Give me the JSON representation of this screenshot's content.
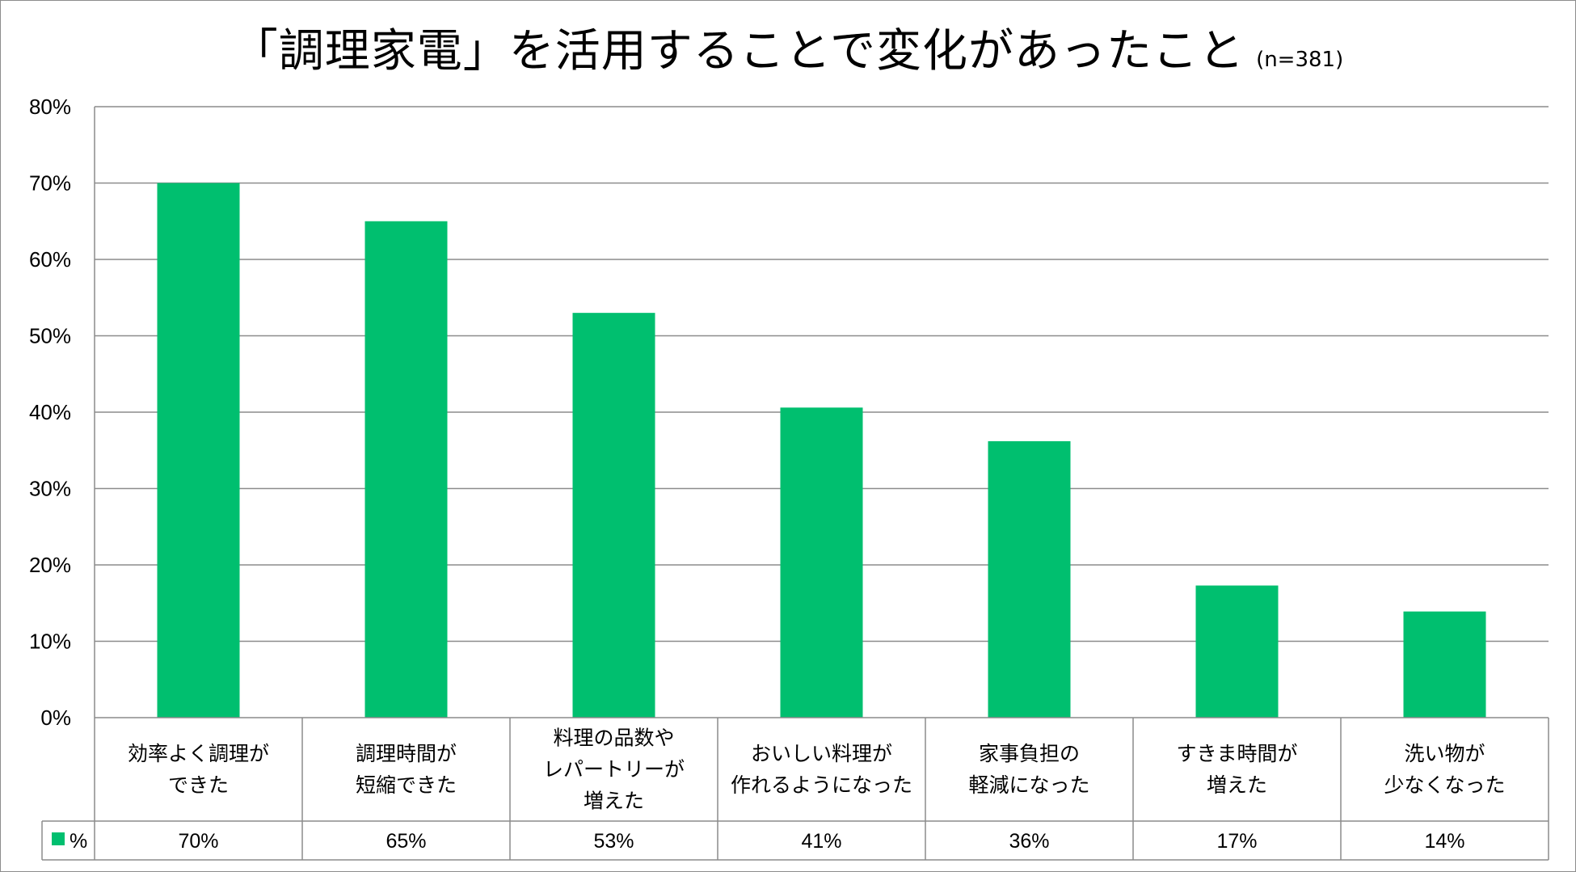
{
  "chart_data": {
    "type": "bar",
    "title": "「調理家電」を活用することで変化があったこと",
    "subtitle": "(n=381)",
    "categories": [
      [
        "効率よく調理が",
        "できた"
      ],
      [
        "調理時間が",
        "短縮できた"
      ],
      [
        "料理の品数や",
        "レパートリーが",
        "増えた"
      ],
      [
        "おいしい料理が",
        "作れるようになった"
      ],
      [
        "家事負担の",
        "軽減になった"
      ],
      [
        "すきま時間が",
        "増えた"
      ],
      [
        "洗い物が",
        "少なくなった"
      ]
    ],
    "series": [
      {
        "name": "%",
        "values": [
          70,
          65,
          53,
          40.6,
          36.2,
          17.3,
          13.9
        ],
        "labels": [
          "70%",
          "65%",
          "53%",
          "41%",
          "36%",
          "17%",
          "14%"
        ],
        "color": "#00bf6f"
      }
    ],
    "yticks": [
      "0%",
      "10%",
      "20%",
      "30%",
      "40%",
      "50%",
      "60%",
      "70%",
      "80%"
    ],
    "ylim": [
      0,
      80
    ],
    "grid": true,
    "legend": "data-table",
    "colors": {
      "bar": "#00bf6f",
      "grid": "#8c8c8c",
      "axis": "#8c8c8c"
    }
  }
}
